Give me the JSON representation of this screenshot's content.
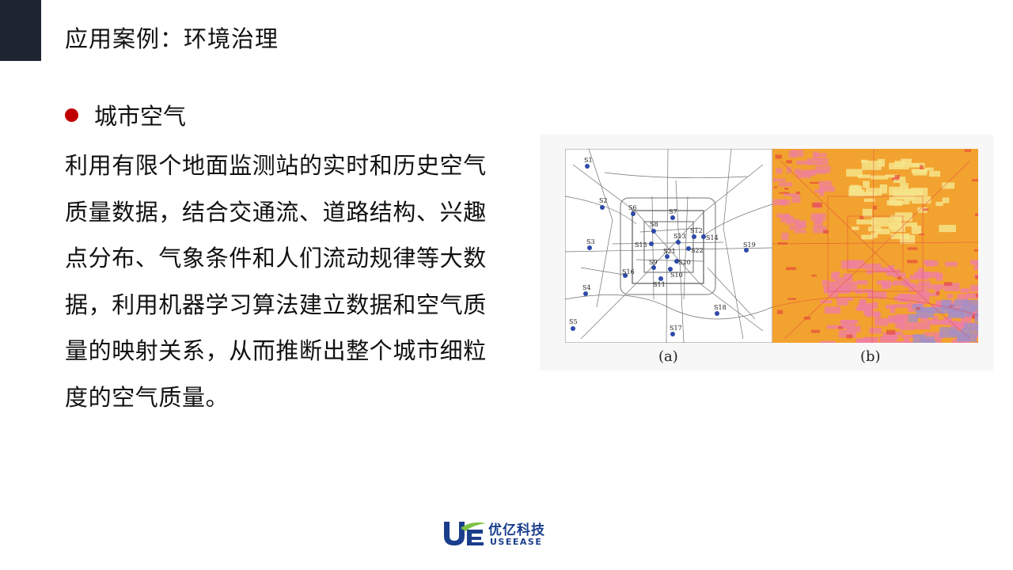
{
  "slide": {
    "title": "应用案例：环境治理",
    "bullet": "城市空气",
    "body": "利用有限个地面监测站的实时和历史空气\n质量数据，结合交通流、道路结构、兴趣\n点分布、气象条件和人们流动规律等大数\n据，利用机器学习算法建立数据和空气质\n量的映射关系，从而推断出整个城市细粒\n度的空气质量。"
  },
  "figure": {
    "caption_a": "(a)",
    "caption_b": "(b)",
    "stations": [
      "S1",
      "S2",
      "S3",
      "S4",
      "S5",
      "S6",
      "S7",
      "S8",
      "S9",
      "S10",
      "S11",
      "S12",
      "S13",
      "S14",
      "S15",
      "S16",
      "S17",
      "S18",
      "S19",
      "S20",
      "S21",
      "S22"
    ],
    "station_color": "#2e4aa8",
    "heat_colors": {
      "base": "#f2a22f",
      "light": "#f6e48a",
      "pink": "#ef7fa0",
      "red": "#e23c3c",
      "purple": "#a58fc7"
    }
  },
  "logo": {
    "name_cn": "优亿科技",
    "name_en": "USEEASE",
    "colors": {
      "blue": "#1a3e8c",
      "green": "#7cc242"
    }
  }
}
